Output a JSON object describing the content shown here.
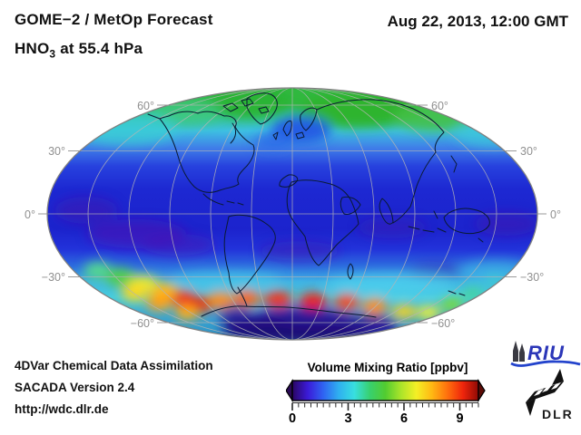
{
  "header": {
    "title_line1": "GOME−2 / MetOp Forecast",
    "formula_prefix": "HNO",
    "formula_subscript": "3",
    "formula_suffix": " at 55.4 hPa",
    "datetime": "Aug 22, 2013, 12:00 GMT"
  },
  "map": {
    "projection": "mollweide",
    "graticule_interval_deg": 30,
    "lat_labels": [
      "60°",
      "30°",
      "0°",
      "−30°",
      "−60°"
    ]
  },
  "colorbar": {
    "title": "Volume Mixing Ratio [ppbv]",
    "ticks": [
      "0",
      "3",
      "6",
      "9"
    ],
    "range_min": 0,
    "range_max": 10,
    "gradient": [
      "#2a0563",
      "#3b1bd8",
      "#2f64f2",
      "#2fb0f0",
      "#38dfe0",
      "#38d06e",
      "#52cc30",
      "#aae42a",
      "#f4ef25",
      "#ffb813",
      "#ff700d",
      "#ef250c",
      "#8f0a05"
    ]
  },
  "footer": {
    "line1": "4DVar Chemical Data Assimilation",
    "line2": "SACADA Version 2.4",
    "line3": "http://wdc.dlr.de"
  },
  "logos": {
    "riu": "RIU",
    "dlr": "DLR"
  },
  "chart_data": {
    "type": "heatmap",
    "title": "GOME−2 / MetOp Forecast — HNO3 at 55.4 hPa",
    "timestamp": "Aug 22, 2013, 12:00 GMT",
    "projection": "mollweide",
    "graticule_deg": 30,
    "colorbar": {
      "label": "Volume Mixing Ratio [ppbv]",
      "ticks": [
        0,
        3,
        6,
        9
      ],
      "range": [
        0,
        10
      ]
    },
    "regions": [
      {
        "region": "north polar cap (60–90N, Greenland/Siberia maxima)",
        "approx_ppbv": 4.5
      },
      {
        "region": "northern mid-latitudes (30–60N)",
        "approx_ppbv": 2.0
      },
      {
        "region": "northern Europe / Norwegian Sea pocket",
        "approx_ppbv": 1.5
      },
      {
        "region": "tropics (30S–30N)",
        "approx_ppbv": 0.8
      },
      {
        "region": "tropical purple minima patches",
        "approx_ppbv": 0.4
      },
      {
        "region": "southern mid-latitudes (30–50S)",
        "approx_ppbv": 3.0
      },
      {
        "region": "circumpolar collar 55–70S, peak south of South America",
        "approx_ppbv": 8.5
      },
      {
        "region": "antarctic interior (75–90S)",
        "approx_ppbv": 0.7
      }
    ]
  }
}
